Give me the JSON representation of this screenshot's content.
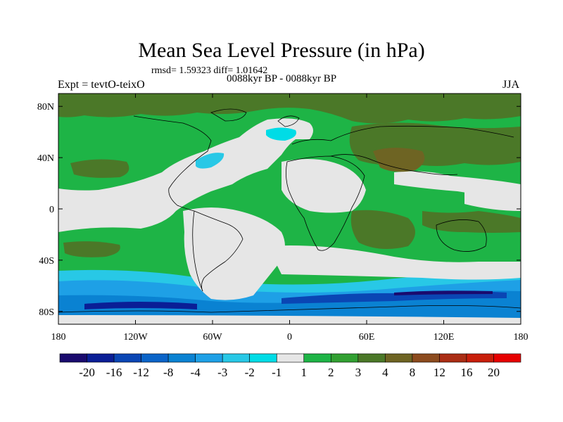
{
  "title": "Mean Sea Level Pressure (in hPa)",
  "stats": "rmsd= 1.59323 diff= 1.01642",
  "subtitle": "0088kyr BP - 0088kyr BP",
  "left_label": "Expt = tevtO-teixO",
  "right_label": "JJA",
  "map": {
    "lon_range": [
      -180,
      180
    ],
    "lat_range": [
      -90,
      90
    ],
    "lon_ticks": [
      {
        "value": -180,
        "label": "180"
      },
      {
        "value": -120,
        "label": "120W"
      },
      {
        "value": -60,
        "label": "60W"
      },
      {
        "value": 0,
        "label": "0"
      },
      {
        "value": 60,
        "label": "60E"
      },
      {
        "value": 120,
        "label": "120E"
      },
      {
        "value": 180,
        "label": "180"
      }
    ],
    "lat_ticks": [
      {
        "value": 80,
        "label": "80N"
      },
      {
        "value": 40,
        "label": "40N"
      },
      {
        "value": 0,
        "label": "0"
      },
      {
        "value": -40,
        "label": "40S"
      },
      {
        "value": -80,
        "label": "80S"
      }
    ]
  },
  "colorbar": {
    "colors": [
      "#1a0a6e",
      "#0a1e96",
      "#0a46b4",
      "#0a64c8",
      "#0a82d2",
      "#1ea0e6",
      "#28c8e6",
      "#00dce6",
      "#e6e6e6",
      "#1eb446",
      "#32a032",
      "#4b7828",
      "#6e6423",
      "#8c4b1e",
      "#aa2d14",
      "#c81e0a",
      "#e60000"
    ],
    "labels": [
      "-20",
      "-16",
      "-12",
      "-8",
      "-4",
      "-3",
      "-2",
      "-1",
      "1",
      "2",
      "3",
      "4",
      "8",
      "12",
      "16",
      "20"
    ]
  },
  "field_colors": {
    "neutral": "#e6e6e6",
    "pos1": "#1eb446",
    "pos2": "#4b7828",
    "pos3": "#6e6423",
    "pos4": "#8c4b1e",
    "neg1": "#00dce6",
    "neg2": "#28c8e6",
    "neg3": "#1ea0e6",
    "neg4": "#0a64c8",
    "neg5": "#0a1e96"
  }
}
